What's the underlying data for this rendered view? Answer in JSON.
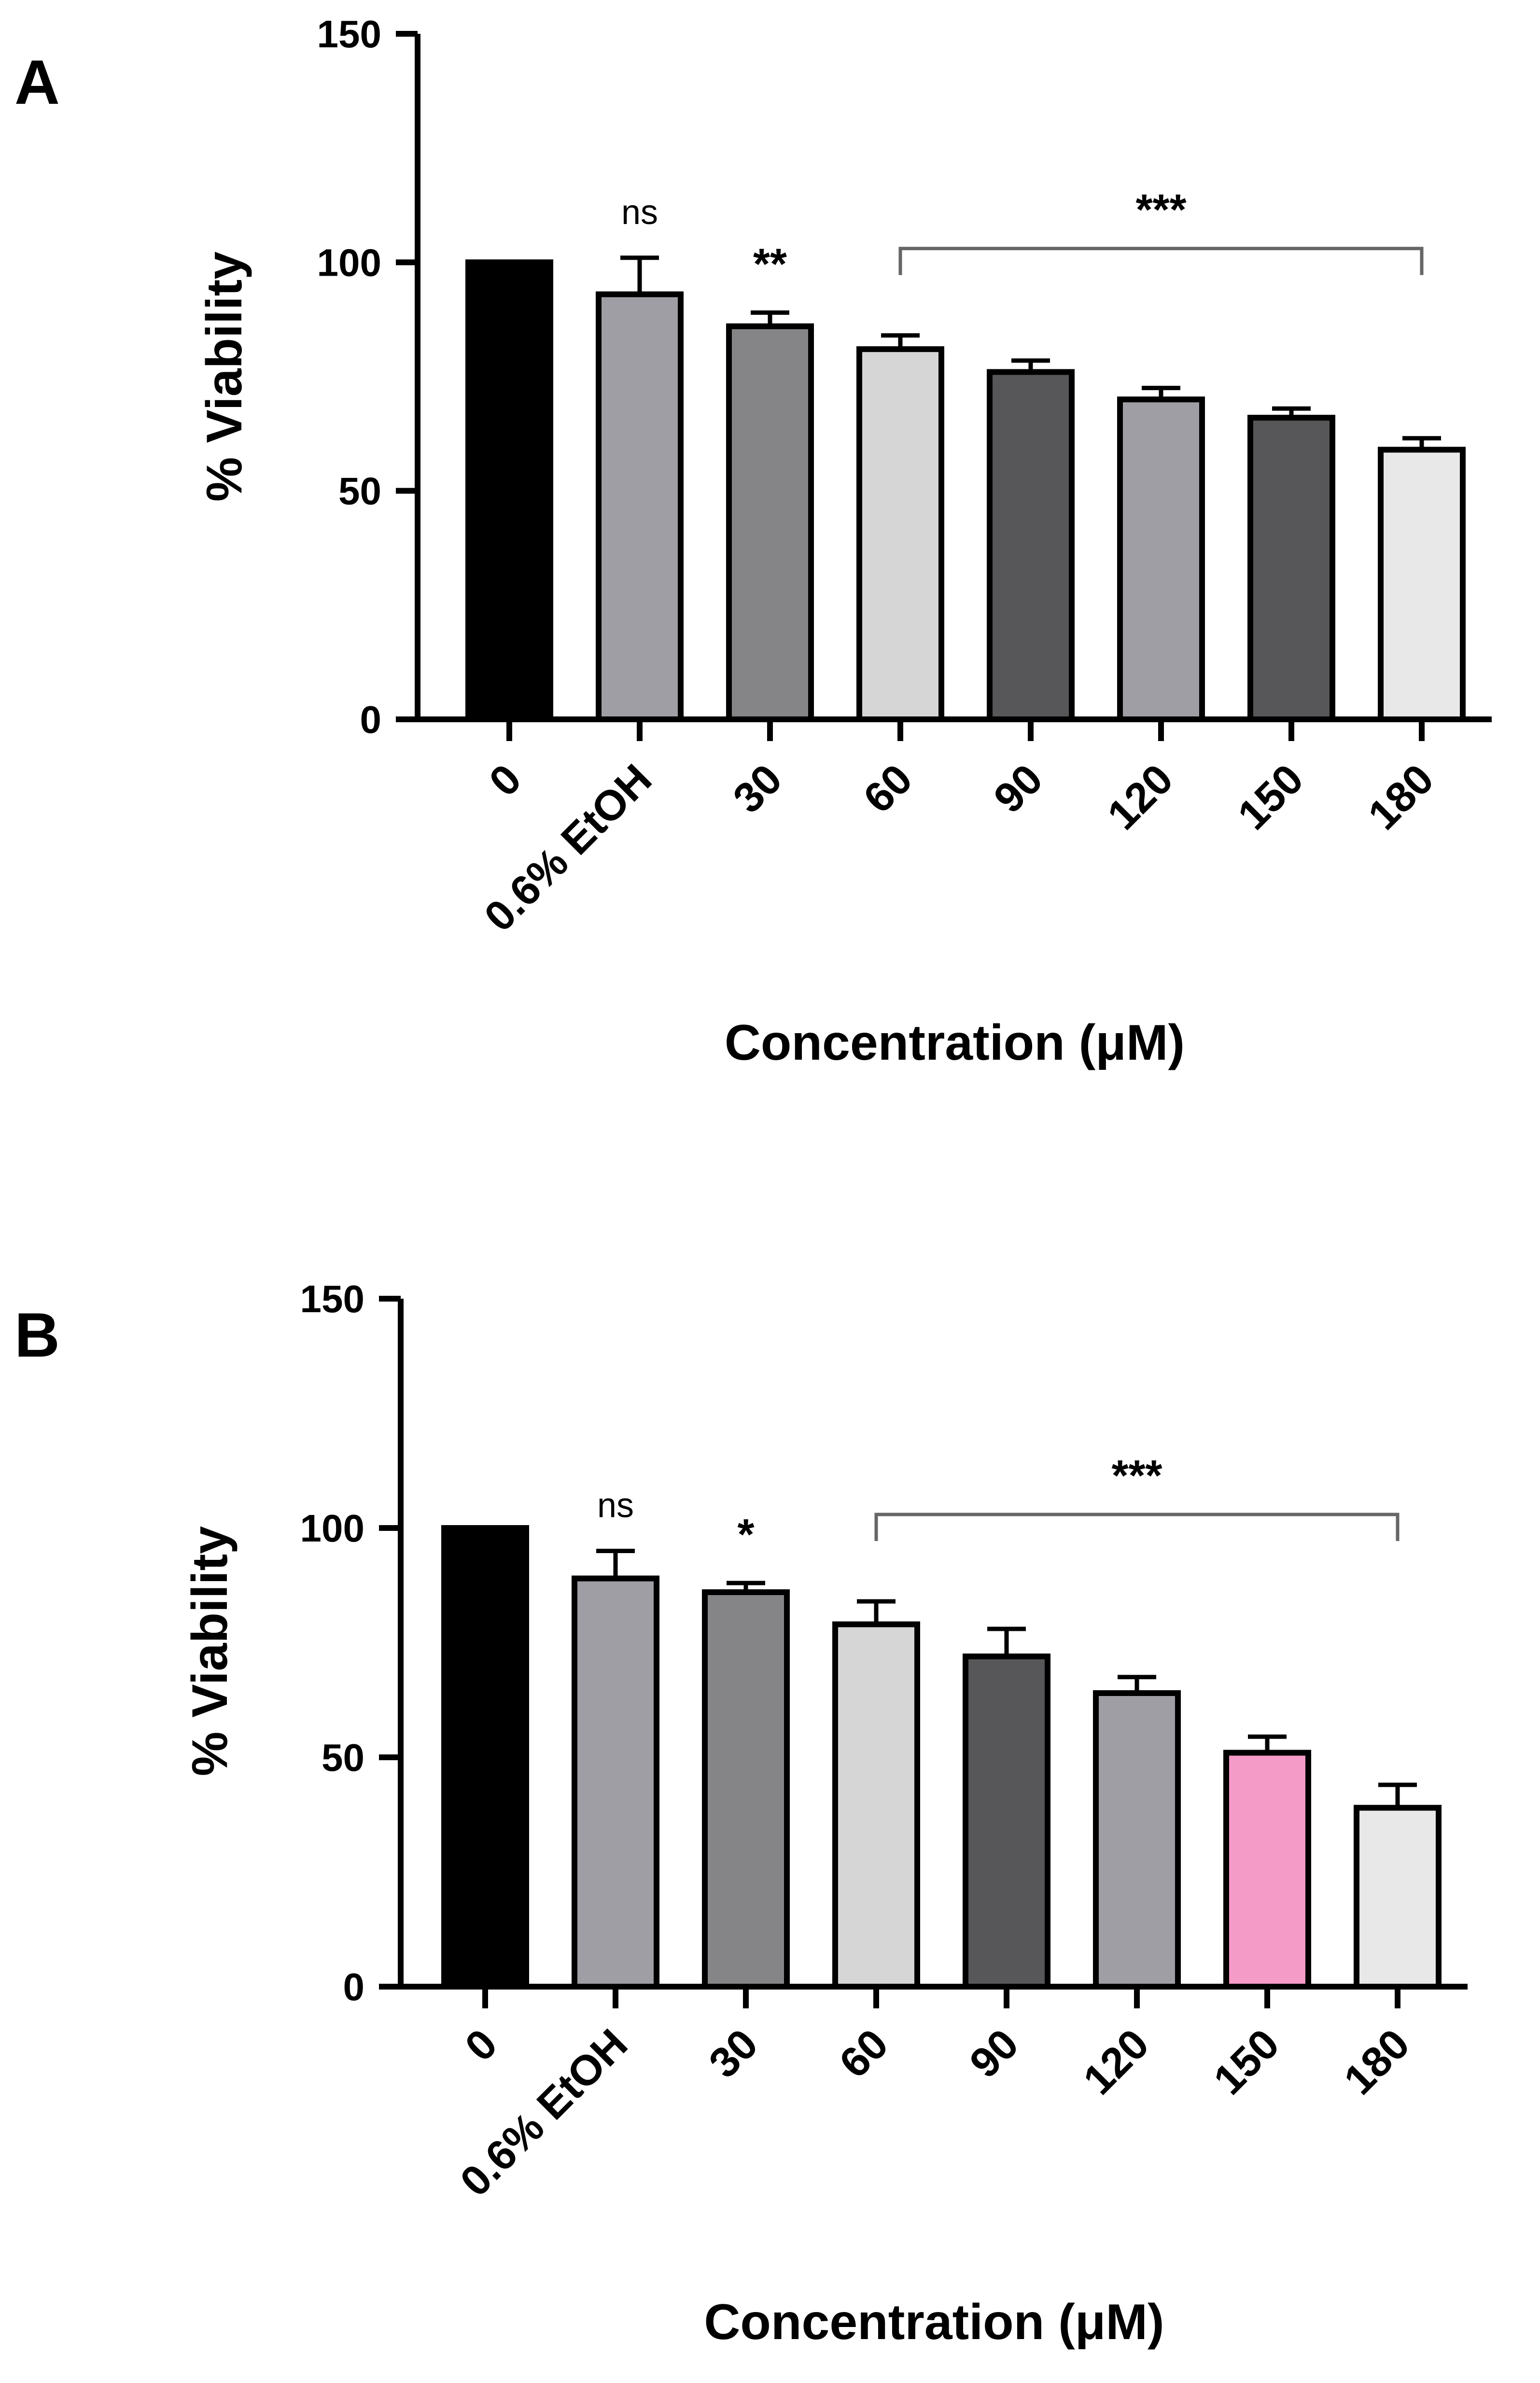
{
  "chart_data": [
    {
      "panel": "A",
      "type": "bar",
      "categories": [
        "0",
        "0.6% EtOH",
        "30",
        "60",
        "90",
        "120",
        "150",
        "180"
      ],
      "values": [
        100,
        93,
        86,
        81,
        76,
        70,
        66,
        59
      ],
      "errors": [
        0,
        8,
        3,
        3,
        2.5,
        2.5,
        2,
        2.5
      ],
      "bar_colors": [
        "#000000",
        "#9e9ea4",
        "#858587",
        "#d6d6d6",
        "#575759",
        "#9e9ea4",
        "#575759",
        "#e8e8e8"
      ],
      "significance": [
        {
          "label": "ns",
          "category_index": 1
        },
        {
          "label": "**",
          "category_index": 2
        },
        {
          "label": "***",
          "from_index": 3,
          "to_index": 7,
          "bracket": true
        }
      ],
      "xlabel": "Concentration (μM)",
      "ylabel": "% Viability",
      "yticks": [
        "0",
        "50",
        "100",
        "150"
      ],
      "ylim": [
        0,
        150
      ]
    },
    {
      "panel": "B",
      "type": "bar",
      "categories": [
        "0",
        "0.6% EtOH",
        "30",
        "60",
        "90",
        "120",
        "150",
        "180"
      ],
      "values": [
        100,
        89,
        86,
        79,
        72,
        64,
        51,
        39
      ],
      "errors": [
        0,
        6,
        2,
        5,
        6,
        3.5,
        3.5,
        5
      ],
      "bar_colors": [
        "#000000",
        "#9e9ea4",
        "#858587",
        "#d6d6d6",
        "#575759",
        "#9e9ea4",
        "#f59bc7",
        "#e8e8e8"
      ],
      "significance": [
        {
          "label": "ns",
          "category_index": 1
        },
        {
          "label": "*",
          "category_index": 2
        },
        {
          "label": "***",
          "from_index": 3,
          "to_index": 7,
          "bracket": true
        }
      ],
      "xlabel": "Concentration (μM)",
      "ylabel": "% Viability",
      "yticks": [
        "0",
        "50",
        "100",
        "150"
      ],
      "ylim": [
        0,
        150
      ]
    }
  ]
}
